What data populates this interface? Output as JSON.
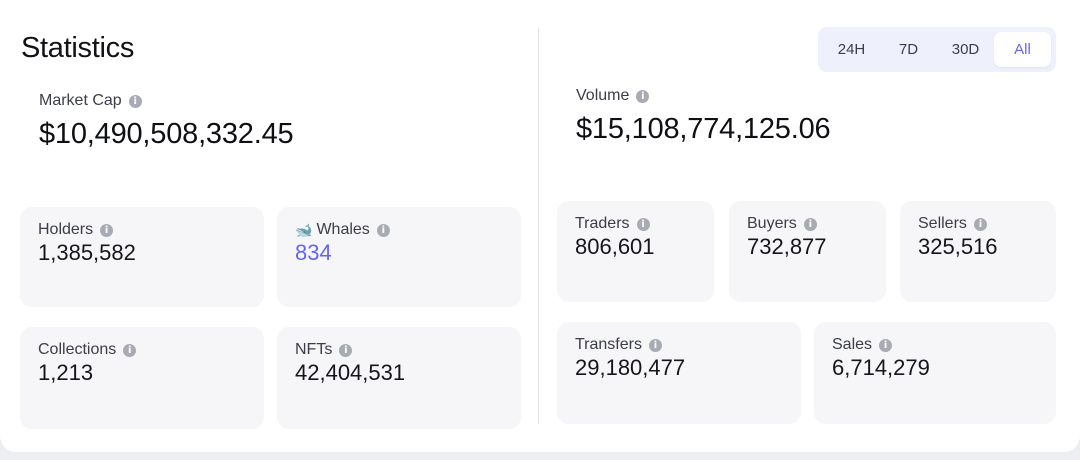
{
  "title": "Statistics",
  "time_range": {
    "options": [
      "24H",
      "7D",
      "30D",
      "All"
    ],
    "selected": "All"
  },
  "market_cap": {
    "label": "Market Cap",
    "value": "$10,490,508,332.45"
  },
  "volume": {
    "label": "Volume",
    "value": "$15,108,774,125.06"
  },
  "left_tiles": {
    "holders": {
      "label": "Holders",
      "value": "1,385,582"
    },
    "whales": {
      "label": "Whales",
      "value": "834"
    },
    "collections": {
      "label": "Collections",
      "value": "1,213"
    },
    "nfts": {
      "label": "NFTs",
      "value": "42,404,531"
    }
  },
  "right_tiles": {
    "traders": {
      "label": "Traders",
      "value": "806,601"
    },
    "buyers": {
      "label": "Buyers",
      "value": "732,877"
    },
    "sellers": {
      "label": "Sellers",
      "value": "325,516"
    },
    "transfers": {
      "label": "Transfers",
      "value": "29,180,477"
    },
    "sales": {
      "label": "Sales",
      "value": "6,714,279"
    }
  },
  "icons": {
    "info": "info-icon",
    "whale": "whale-icon"
  },
  "colors": {
    "accent": "#6366f1",
    "tile": "#f6f6f8"
  }
}
